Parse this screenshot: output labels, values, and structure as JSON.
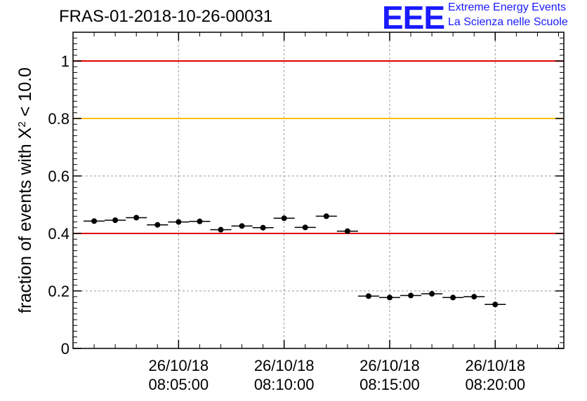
{
  "title": "FRAS-01-2018-10-26-00031",
  "logo": {
    "mark": "EEE",
    "line1": "Extreme Energy Events",
    "line2": "La Scienza nelle Scuole",
    "color": "#1a1aff"
  },
  "chart_data": {
    "type": "scatter",
    "ylabel": "fraction of events with X² < 10.0",
    "ylabel_main": "fraction of events with X",
    "ylabel_sup": "2",
    "ylabel_tail": " < 10.0",
    "x_unit": "minutes after 08:00:00 on 26/10/18",
    "xlim": [
      0.0,
      23.25
    ],
    "ylim": [
      0,
      1.1
    ],
    "y_ticks": [
      {
        "value": 0,
        "label": "0"
      },
      {
        "value": 0.2,
        "label": "0.2"
      },
      {
        "value": 0.4,
        "label": "0.4"
      },
      {
        "value": 0.6,
        "label": "0.6"
      },
      {
        "value": 0.8,
        "label": "0.8"
      },
      {
        "value": 1.0,
        "label": "1"
      }
    ],
    "x_ticks": [
      {
        "value": 5,
        "date": "26/10/18",
        "time": "08:05:00"
      },
      {
        "value": 10,
        "date": "26/10/18",
        "time": "08:10:00"
      },
      {
        "value": 15,
        "date": "26/10/18",
        "time": "08:15:00"
      },
      {
        "value": 20,
        "date": "26/10/18",
        "time": "08:20:00"
      }
    ],
    "grid": true,
    "reference_lines": [
      {
        "y": 1.0,
        "color": "#e00000"
      },
      {
        "y": 0.8,
        "color": "#ffc000"
      },
      {
        "y": 0.4,
        "color": "#e00000"
      }
    ],
    "bin_width": 1.0,
    "series": [
      {
        "color": "#000000",
        "points": [
          {
            "x": 1.0,
            "y": 0.443
          },
          {
            "x": 2.0,
            "y": 0.446
          },
          {
            "x": 3.0,
            "y": 0.455
          },
          {
            "x": 4.0,
            "y": 0.43
          },
          {
            "x": 5.0,
            "y": 0.44
          },
          {
            "x": 6.0,
            "y": 0.442
          },
          {
            "x": 7.0,
            "y": 0.413
          },
          {
            "x": 8.0,
            "y": 0.426
          },
          {
            "x": 9.0,
            "y": 0.42
          },
          {
            "x": 10.0,
            "y": 0.453
          },
          {
            "x": 11.0,
            "y": 0.421
          },
          {
            "x": 12.0,
            "y": 0.46
          },
          {
            "x": 13.0,
            "y": 0.408
          },
          {
            "x": 14.0,
            "y": 0.182
          },
          {
            "x": 15.0,
            "y": 0.177
          },
          {
            "x": 16.0,
            "y": 0.184
          },
          {
            "x": 17.0,
            "y": 0.19
          },
          {
            "x": 18.0,
            "y": 0.177
          },
          {
            "x": 19.0,
            "y": 0.18
          },
          {
            "x": 20.0,
            "y": 0.153
          }
        ]
      }
    ]
  }
}
